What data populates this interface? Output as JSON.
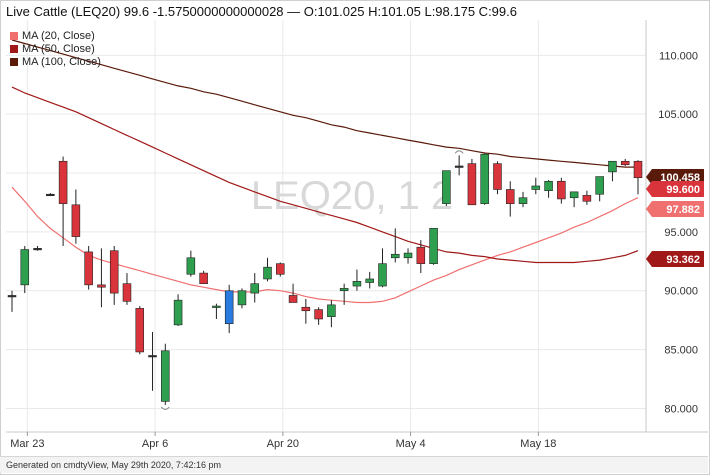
{
  "header": {
    "title": "Live Cattle (LEQ20) 99.6 -1.5750000000000028 — O:101.025 H:101.05 L:98.175 C:99.6"
  },
  "legend": [
    {
      "label": "MA (20, Close)",
      "color": "#f07070"
    },
    {
      "label": "MA (50, Close)",
      "color": "#a01818"
    },
    {
      "label": "MA (100, Close)",
      "color": "#5a1a0a"
    }
  ],
  "watermark": "LEQ20, 1 2",
  "footer": "Generated on cmdtyView, May 29th 2020, 7:42:16 pm",
  "colors": {
    "up": "#2e9e4f",
    "down": "#d9343b",
    "neutral": "#2a7be0",
    "grid": "#e9e9e9"
  },
  "chart_data": {
    "type": "candlestick",
    "x_tick_labels": [
      "Mar 23",
      "Apr 6",
      "Apr 20",
      "May 4",
      "May 18"
    ],
    "y_tick_labels": [
      "80.000",
      "85.000",
      "90.000",
      "95.000",
      "100.000",
      "105.000",
      "110.000"
    ],
    "ylim": [
      78,
      113
    ],
    "candles": [
      {
        "o": 89.6,
        "h": 90.0,
        "l": 88.2,
        "c": 89.6
      },
      {
        "o": 90.5,
        "h": 93.8,
        "l": 89.8,
        "c": 93.5
      },
      {
        "o": 93.6,
        "h": 93.8,
        "l": 93.4,
        "c": 93.6
      },
      {
        "o": 98.2,
        "h": 98.3,
        "l": 98.1,
        "c": 98.2
      },
      {
        "o": 101.0,
        "h": 101.4,
        "l": 93.8,
        "c": 97.4
      },
      {
        "o": 97.3,
        "h": 98.6,
        "l": 94.0,
        "c": 94.6
      },
      {
        "o": 93.3,
        "h": 93.8,
        "l": 90.1,
        "c": 90.5
      },
      {
        "o": 90.5,
        "h": 93.6,
        "l": 88.6,
        "c": 90.3
      },
      {
        "o": 93.4,
        "h": 93.8,
        "l": 88.8,
        "c": 89.8
      },
      {
        "o": 90.6,
        "h": 91.5,
        "l": 88.8,
        "c": 89.1
      },
      {
        "o": 88.5,
        "h": 88.7,
        "l": 84.6,
        "c": 84.8
      },
      {
        "o": 84.5,
        "h": 86.5,
        "l": 81.5,
        "c": 84.5
      },
      {
        "o": 80.6,
        "h": 85.5,
        "l": 80.3,
        "c": 84.9
      },
      {
        "o": 87.1,
        "h": 89.7,
        "l": 87.0,
        "c": 89.2
      },
      {
        "o": 91.4,
        "h": 93.4,
        "l": 91.2,
        "c": 92.8
      },
      {
        "o": 91.5,
        "h": 91.7,
        "l": 90.6,
        "c": 90.6
      },
      {
        "o": 88.6,
        "h": 88.9,
        "l": 87.6,
        "c": 88.7
      },
      {
        "o": 87.2,
        "h": 90.5,
        "l": 86.4,
        "c": 90.0
      },
      {
        "o": 88.8,
        "h": 90.2,
        "l": 88.5,
        "c": 90.0
      },
      {
        "o": 89.8,
        "h": 91.5,
        "l": 89.0,
        "c": 90.6
      },
      {
        "o": 91.0,
        "h": 92.8,
        "l": 90.8,
        "c": 92.0
      },
      {
        "o": 92.3,
        "h": 92.4,
        "l": 91.2,
        "c": 91.4
      },
      {
        "o": 89.6,
        "h": 90.6,
        "l": 89.0,
        "c": 89.0
      },
      {
        "o": 88.6,
        "h": 89.3,
        "l": 87.2,
        "c": 88.3
      },
      {
        "o": 88.4,
        "h": 88.6,
        "l": 87.1,
        "c": 87.6
      },
      {
        "o": 87.8,
        "h": 89.2,
        "l": 86.9,
        "c": 88.8
      },
      {
        "o": 90.0,
        "h": 90.6,
        "l": 88.8,
        "c": 90.2
      },
      {
        "o": 90.4,
        "h": 91.8,
        "l": 90.0,
        "c": 90.8
      },
      {
        "o": 90.7,
        "h": 91.6,
        "l": 90.2,
        "c": 91.0
      },
      {
        "o": 90.4,
        "h": 93.6,
        "l": 90.3,
        "c": 92.3
      },
      {
        "o": 92.8,
        "h": 95.3,
        "l": 92.4,
        "c": 93.1
      },
      {
        "o": 92.8,
        "h": 93.6,
        "l": 92.3,
        "c": 93.2
      },
      {
        "o": 93.7,
        "h": 94.3,
        "l": 91.5,
        "c": 92.3
      },
      {
        "o": 92.3,
        "h": 95.3,
        "l": 92.2,
        "c": 95.3
      },
      {
        "o": 97.4,
        "h": 100.2,
        "l": 97.2,
        "c": 100.2
      },
      {
        "o": 100.6,
        "h": 101.5,
        "l": 99.8,
        "c": 100.6
      },
      {
        "o": 100.8,
        "h": 101.2,
        "l": 97.3,
        "c": 97.3
      },
      {
        "o": 97.4,
        "h": 101.7,
        "l": 97.3,
        "c": 101.6
      },
      {
        "o": 100.8,
        "h": 101.0,
        "l": 98.2,
        "c": 98.6
      },
      {
        "o": 98.6,
        "h": 99.3,
        "l": 96.3,
        "c": 97.4
      },
      {
        "o": 97.4,
        "h": 98.4,
        "l": 97.1,
        "c": 97.9
      },
      {
        "o": 98.6,
        "h": 99.6,
        "l": 98.2,
        "c": 98.9
      },
      {
        "o": 98.5,
        "h": 99.4,
        "l": 97.9,
        "c": 99.3
      },
      {
        "o": 99.3,
        "h": 99.6,
        "l": 97.4,
        "c": 97.8
      },
      {
        "o": 97.9,
        "h": 98.4,
        "l": 97.1,
        "c": 98.4
      },
      {
        "o": 98.1,
        "h": 98.5,
        "l": 97.3,
        "c": 97.6
      },
      {
        "o": 98.2,
        "h": 99.7,
        "l": 97.6,
        "c": 99.7
      },
      {
        "o": 100.1,
        "h": 101.0,
        "l": 99.3,
        "c": 101.0
      },
      {
        "o": 101.0,
        "h": 101.2,
        "l": 100.6,
        "c": 100.7
      },
      {
        "o": 101.0,
        "h": 101.1,
        "l": 98.2,
        "c": 99.6
      }
    ],
    "series": [
      {
        "name": "MA (20, Close)",
        "values": [
          98.8,
          97.6,
          96.3,
          95.3,
          94.5,
          93.7,
          93.0,
          92.6,
          92.3,
          92.0,
          91.7,
          91.4,
          91.1,
          90.8,
          90.5,
          90.3,
          90.1,
          89.9,
          89.9,
          89.9,
          90.1,
          90.0,
          89.8,
          89.5,
          89.3,
          89.2,
          89.1,
          89.0,
          89.0,
          89.1,
          89.4,
          89.9,
          90.4,
          90.9,
          91.3,
          91.8,
          92.2,
          92.6,
          93.0,
          93.3,
          93.7,
          94.1,
          94.5,
          94.9,
          95.4,
          95.8,
          96.3,
          96.8,
          97.4,
          97.9
        ]
      },
      {
        "name": "MA (50, Close)",
        "values": [
          107.3,
          106.8,
          106.4,
          106.0,
          105.6,
          105.2,
          104.7,
          104.2,
          103.7,
          103.2,
          102.7,
          102.2,
          101.7,
          101.2,
          100.7,
          100.2,
          99.7,
          99.2,
          98.8,
          98.4,
          98.0,
          97.6,
          97.3,
          97.0,
          96.7,
          96.4,
          96.1,
          95.8,
          95.4,
          95.0,
          94.6,
          94.2,
          93.9,
          93.6,
          93.3,
          93.2,
          93.0,
          92.9,
          92.7,
          92.6,
          92.5,
          92.4,
          92.4,
          92.4,
          92.4,
          92.5,
          92.6,
          92.8,
          93.0,
          93.4
        ]
      },
      {
        "name": "MA (100, Close)",
        "values": [
          111.3,
          111.0,
          110.7,
          110.4,
          110.1,
          109.8,
          109.5,
          109.2,
          108.9,
          108.6,
          108.3,
          108.0,
          107.7,
          107.4,
          107.2,
          106.9,
          106.7,
          106.4,
          106.1,
          105.8,
          105.5,
          105.2,
          104.9,
          104.7,
          104.4,
          104.1,
          103.9,
          103.6,
          103.4,
          103.2,
          103.0,
          102.8,
          102.6,
          102.4,
          102.2,
          102.1,
          101.9,
          101.7,
          101.6,
          101.4,
          101.3,
          101.2,
          101.1,
          101.0,
          100.9,
          100.8,
          100.7,
          100.6,
          100.5,
          100.5
        ]
      }
    ],
    "price_tags": [
      {
        "value": "100.458",
        "level": 100.458,
        "bg": "#5a1a0a"
      },
      {
        "value": "99.600",
        "level": 99.6,
        "bg": "#d9343b"
      },
      {
        "value": "97.882",
        "level": 97.882,
        "bg": "#f07070"
      },
      {
        "value": "93.362",
        "level": 93.362,
        "bg": "#a01818"
      }
    ]
  }
}
